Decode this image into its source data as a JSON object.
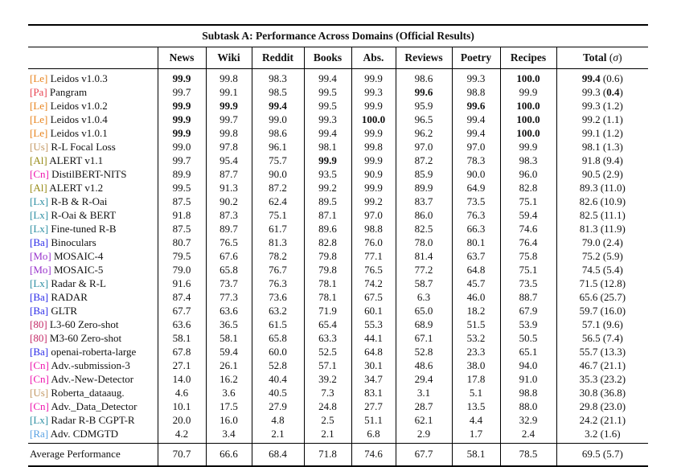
{
  "table": {
    "title": "Subtask A: Performance Across Domains (Official Results)",
    "columns": [
      "News",
      "Wiki",
      "Reddit",
      "Books",
      "Abs.",
      "Reviews",
      "Poetry",
      "Recipes"
    ],
    "total_label": {
      "text": "Total",
      "sigma": "σ"
    },
    "tag_colors": {
      "Le": "#e8841e",
      "Pa": "#e8414f",
      "Us": "#c49a66",
      "Al": "#968a15",
      "Cn": "#ee15ae",
      "Lx": "#2e8fa3",
      "Ba": "#2b2be8",
      "Mo": "#9935cc",
      "80": "#c42a67",
      "Ra": "#57a1e3"
    },
    "rows": [
      {
        "tag": "Le",
        "name": "Leidos v1.0.3",
        "v": [
          "99.9",
          "99.8",
          "98.3",
          "99.4",
          "99.9",
          "98.6",
          "99.3",
          "100.0"
        ],
        "b": [
          0,
          7
        ],
        "t": "99.4",
        "tb": true,
        "s": "0.6",
        "sb": false
      },
      {
        "tag": "Pa",
        "name": "Pangram",
        "v": [
          "99.7",
          "99.1",
          "98.5",
          "99.5",
          "99.3",
          "99.6",
          "98.8",
          "99.9"
        ],
        "b": [
          5
        ],
        "t": "99.3",
        "tb": false,
        "s": "0.4",
        "sb": true
      },
      {
        "tag": "Le",
        "name": "Leidos v1.0.2",
        "v": [
          "99.9",
          "99.9",
          "99.4",
          "99.5",
          "99.9",
          "95.9",
          "99.6",
          "100.0"
        ],
        "b": [
          0,
          1,
          2,
          6,
          7
        ],
        "t": "99.3",
        "tb": false,
        "s": "1.2",
        "sb": false
      },
      {
        "tag": "Le",
        "name": "Leidos v1.0.4",
        "v": [
          "99.9",
          "99.7",
          "99.0",
          "99.3",
          "100.0",
          "96.5",
          "99.4",
          "100.0"
        ],
        "b": [
          0,
          4,
          7
        ],
        "t": "99.2",
        "tb": false,
        "s": "1.1",
        "sb": false
      },
      {
        "tag": "Le",
        "name": "Leidos v1.0.1",
        "v": [
          "99.9",
          "99.8",
          "98.6",
          "99.4",
          "99.9",
          "96.2",
          "99.4",
          "100.0"
        ],
        "b": [
          0,
          7
        ],
        "t": "99.1",
        "tb": false,
        "s": "1.2",
        "sb": false
      },
      {
        "tag": "Us",
        "name": "R-L Focal Loss",
        "v": [
          "99.0",
          "97.8",
          "96.1",
          "98.1",
          "99.8",
          "97.0",
          "97.0",
          "99.9"
        ],
        "b": [],
        "t": "98.1",
        "tb": false,
        "s": "1.3",
        "sb": false
      },
      {
        "tag": "Al",
        "name": "ALERT v1.1",
        "v": [
          "99.7",
          "95.4",
          "75.7",
          "99.9",
          "99.9",
          "87.2",
          "78.3",
          "98.3"
        ],
        "b": [
          3
        ],
        "t": "91.8",
        "tb": false,
        "s": "9.4",
        "sb": false
      },
      {
        "tag": "Cn",
        "name": "DistilBERT-NITS",
        "v": [
          "89.9",
          "87.7",
          "90.0",
          "93.5",
          "90.9",
          "85.9",
          "90.0",
          "96.0"
        ],
        "b": [],
        "t": "90.5",
        "tb": false,
        "s": "2.9",
        "sb": false
      },
      {
        "tag": "Al",
        "name": "ALERT v1.2",
        "v": [
          "99.5",
          "91.3",
          "87.2",
          "99.2",
          "99.9",
          "89.9",
          "64.9",
          "82.8"
        ],
        "b": [],
        "t": "89.3",
        "tb": false,
        "s": "11.0",
        "sb": false
      },
      {
        "tag": "Lx",
        "name": "R-B & R-Oai",
        "v": [
          "87.5",
          "90.2",
          "62.4",
          "89.5",
          "99.2",
          "83.7",
          "73.5",
          "75.1"
        ],
        "b": [],
        "t": "82.6",
        "tb": false,
        "s": "10.9",
        "sb": false
      },
      {
        "tag": "Lx",
        "name": "R-Oai & BERT",
        "v": [
          "91.8",
          "87.3",
          "75.1",
          "87.1",
          "97.0",
          "86.0",
          "76.3",
          "59.4"
        ],
        "b": [],
        "t": "82.5",
        "tb": false,
        "s": "11.1",
        "sb": false
      },
      {
        "tag": "Lx",
        "name": "Fine-tuned R-B",
        "v": [
          "87.5",
          "89.7",
          "61.7",
          "89.6",
          "98.8",
          "82.5",
          "66.3",
          "74.6"
        ],
        "b": [],
        "t": "81.3",
        "tb": false,
        "s": "11.9",
        "sb": false
      },
      {
        "tag": "Ba",
        "name": "Binoculars",
        "v": [
          "80.7",
          "76.5",
          "81.3",
          "82.8",
          "76.0",
          "78.0",
          "80.1",
          "76.4"
        ],
        "b": [],
        "t": "79.0",
        "tb": false,
        "s": "2.4",
        "sb": false
      },
      {
        "tag": "Mo",
        "name": "MOSAIC-4",
        "v": [
          "79.5",
          "67.6",
          "78.2",
          "79.8",
          "77.1",
          "81.4",
          "63.7",
          "75.8"
        ],
        "b": [],
        "t": "75.2",
        "tb": false,
        "s": "5.9",
        "sb": false
      },
      {
        "tag": "Mo",
        "name": "MOSAIC-5",
        "v": [
          "79.0",
          "65.8",
          "76.7",
          "79.8",
          "76.5",
          "77.2",
          "64.8",
          "75.1"
        ],
        "b": [],
        "t": "74.5",
        "tb": false,
        "s": "5.4",
        "sb": false
      },
      {
        "tag": "Lx",
        "name": "Radar & R-L",
        "v": [
          "91.6",
          "73.7",
          "76.3",
          "78.1",
          "74.2",
          "58.7",
          "45.7",
          "73.5"
        ],
        "b": [],
        "t": "71.5",
        "tb": false,
        "s": "12.8",
        "sb": false
      },
      {
        "tag": "Ba",
        "name": "RADAR",
        "v": [
          "87.4",
          "77.3",
          "73.6",
          "78.1",
          "67.5",
          "6.3",
          "46.0",
          "88.7"
        ],
        "b": [],
        "t": "65.6",
        "tb": false,
        "s": "25.7",
        "sb": false
      },
      {
        "tag": "Ba",
        "name": "GLTR",
        "v": [
          "67.7",
          "63.6",
          "63.2",
          "71.9",
          "60.1",
          "65.0",
          "18.2",
          "67.9"
        ],
        "b": [],
        "t": "59.7",
        "tb": false,
        "s": "16.0",
        "sb": false
      },
      {
        "tag": "80",
        "name": "L3-60 Zero-shot",
        "v": [
          "63.6",
          "36.5",
          "61.5",
          "65.4",
          "55.3",
          "68.9",
          "51.5",
          "53.9"
        ],
        "b": [],
        "t": "57.1",
        "tb": false,
        "s": "9.6",
        "sb": false
      },
      {
        "tag": "80",
        "name": "M3-60 Zero-shot",
        "v": [
          "58.1",
          "58.1",
          "65.8",
          "63.3",
          "44.1",
          "67.1",
          "53.2",
          "50.5"
        ],
        "b": [],
        "t": "56.5",
        "tb": false,
        "s": "7.4",
        "sb": false
      },
      {
        "tag": "Ba",
        "name": "openai-roberta-large",
        "v": [
          "67.8",
          "59.4",
          "60.0",
          "52.5",
          "64.8",
          "52.8",
          "23.3",
          "65.1"
        ],
        "b": [],
        "t": "55.7",
        "tb": false,
        "s": "13.3",
        "sb": false
      },
      {
        "tag": "Cn",
        "name": "Adv.-submission-3",
        "v": [
          "27.1",
          "26.1",
          "52.8",
          "57.1",
          "30.1",
          "48.6",
          "38.0",
          "94.0"
        ],
        "b": [],
        "t": "46.7",
        "tb": false,
        "s": "21.1",
        "sb": false
      },
      {
        "tag": "Cn",
        "name": "Adv.-New-Detector",
        "v": [
          "14.0",
          "16.2",
          "40.4",
          "39.2",
          "34.7",
          "29.4",
          "17.8",
          "91.0"
        ],
        "b": [],
        "t": "35.3",
        "tb": false,
        "s": "23.2",
        "sb": false
      },
      {
        "tag": "Us",
        "name": "Roberta_dataaug.",
        "v": [
          "4.6",
          "3.6",
          "40.5",
          "7.3",
          "83.1",
          "3.1",
          "5.1",
          "98.8"
        ],
        "b": [],
        "t": "30.8",
        "tb": false,
        "s": "36.8",
        "sb": false
      },
      {
        "tag": "Cn",
        "name": "Adv._Data_Detector",
        "v": [
          "10.1",
          "17.5",
          "27.9",
          "24.8",
          "27.7",
          "28.7",
          "13.5",
          "88.0"
        ],
        "b": [],
        "t": "29.8",
        "tb": false,
        "s": "23.0",
        "sb": false
      },
      {
        "tag": "Lx",
        "name": "Radar R-B CGPT-R",
        "v": [
          "20.0",
          "16.0",
          "4.8",
          "2.5",
          "51.1",
          "62.1",
          "4.4",
          "32.9"
        ],
        "b": [],
        "t": "24.2",
        "tb": false,
        "s": "21.1",
        "sb": false
      },
      {
        "tag": "Ra",
        "name": "Adv. CDMGTD",
        "v": [
          "4.2",
          "3.4",
          "2.1",
          "2.1",
          "6.8",
          "2.9",
          "1.7",
          "2.4"
        ],
        "b": [],
        "t": "3.2",
        "tb": false,
        "s": "1.6",
        "sb": false
      }
    ],
    "average": {
      "label": "Average Performance",
      "v": [
        "70.7",
        "66.6",
        "68.4",
        "71.8",
        "74.6",
        "67.7",
        "58.1",
        "78.5"
      ],
      "t": "69.5",
      "s": "5.7"
    }
  }
}
